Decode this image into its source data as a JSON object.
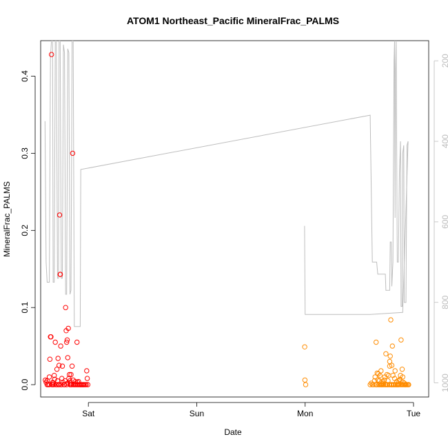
{
  "chart_data": {
    "type": "scatter",
    "title": "ATOM1 Northeast_Pacific MineralFrac_PALMS",
    "xlabel": "Date",
    "ylabel": "MineralFrac_PALMS",
    "x_unit": "days since Sat 00:00",
    "xlim": [
      -0.44,
      3.14
    ],
    "ylim": [
      -0.016,
      0.446
    ],
    "x_ticks": [
      {
        "value": 0,
        "label": "Sat"
      },
      {
        "value": 1,
        "label": "Sun"
      },
      {
        "value": 2,
        "label": "Mon"
      },
      {
        "value": 3,
        "label": "Tue"
      }
    ],
    "y_ticks": [
      0.0,
      0.1,
      0.2,
      0.3,
      0.4
    ],
    "y2_ticks": [
      200,
      400,
      600,
      800,
      1000
    ],
    "y2_lim": [
      1035,
      150
    ],
    "grid": false,
    "series": [
      {
        "name": "",
        "color": "#ff0000",
        "marker": "open-circle",
        "points": [
          [
            -0.397,
            0.006
          ],
          [
            -0.39,
            0.003
          ],
          [
            -0.38,
            0.0
          ],
          [
            -0.37,
            0.0
          ],
          [
            -0.36,
            0.0
          ],
          [
            -0.355,
            0.033
          ],
          [
            -0.35,
            0.062
          ],
          [
            -0.345,
            0.062
          ],
          [
            -0.34,
            0.428
          ],
          [
            -0.335,
            0.0
          ],
          [
            -0.33,
            0.003
          ],
          [
            -0.325,
            0.002
          ],
          [
            -0.32,
            0.0
          ],
          [
            -0.315,
            0.012
          ],
          [
            -0.31,
            0.007
          ],
          [
            -0.305,
            0.055
          ],
          [
            -0.3,
            0.0
          ],
          [
            -0.29,
            0.02
          ],
          [
            -0.285,
            0.005
          ],
          [
            -0.28,
            0.034
          ],
          [
            -0.275,
            0.0
          ],
          [
            -0.27,
            0.025
          ],
          [
            -0.265,
            0.22
          ],
          [
            -0.26,
            0.143
          ],
          [
            -0.258,
            0.143
          ],
          [
            -0.255,
            0.05
          ],
          [
            -0.25,
            0.0
          ],
          [
            -0.245,
            0.008
          ],
          [
            -0.24,
            0.024
          ],
          [
            -0.235,
            0.003
          ],
          [
            -0.225,
            0.0
          ],
          [
            -0.215,
            0.005
          ],
          [
            -0.21,
            0.1
          ],
          [
            -0.205,
            0.07
          ],
          [
            -0.2,
            0.055
          ],
          [
            -0.195,
            0.058
          ],
          [
            -0.19,
            0.035
          ],
          [
            -0.185,
            0.073
          ],
          [
            -0.18,
            0.008
          ],
          [
            -0.175,
            0.013
          ],
          [
            -0.17,
            0.0
          ],
          [
            -0.165,
            0.002
          ],
          [
            -0.16,
            0.013
          ],
          [
            -0.155,
            0.0
          ],
          [
            -0.15,
            0.024
          ],
          [
            -0.145,
            0.3
          ],
          [
            -0.14,
            0.006
          ],
          [
            -0.13,
            0.0
          ],
          [
            -0.12,
            0.0
          ],
          [
            -0.11,
            0.0
          ],
          [
            -0.105,
            0.055
          ],
          [
            -0.1,
            0.0
          ],
          [
            -0.09,
            0.0
          ],
          [
            -0.08,
            0.0
          ],
          [
            -0.07,
            0.0
          ],
          [
            -0.06,
            0.0
          ],
          [
            -0.05,
            0.0
          ],
          [
            -0.04,
            0.0
          ],
          [
            -0.03,
            0.0
          ],
          [
            -0.02,
            0.0
          ],
          [
            -0.015,
            0.018
          ],
          [
            -0.01,
            0.008
          ],
          [
            -0.005,
            0.0
          ],
          [
            -0.38,
            0.005
          ],
          [
            -0.36,
            0.01
          ],
          [
            -0.33,
            0.0
          ],
          [
            -0.29,
            0.0
          ],
          [
            -0.27,
            0.0
          ],
          [
            -0.25,
            0.0
          ],
          [
            -0.22,
            0.0
          ],
          [
            -0.2,
            0.0
          ],
          [
            -0.19,
            0.002
          ],
          [
            -0.17,
            0.005
          ],
          [
            -0.16,
            0.0
          ],
          [
            -0.14,
            0.0
          ],
          [
            -0.12,
            0.004
          ],
          [
            -0.1,
            0.003
          ],
          [
            -0.09,
            0.004
          ],
          [
            -0.07,
            0.0
          ],
          [
            -0.05,
            0.0
          ]
        ]
      },
      {
        "name": "",
        "color": "#ff8c00",
        "marker": "open-circle",
        "points": [
          [
            1.996,
            0.049
          ],
          [
            1.998,
            0.006
          ],
          [
            2.005,
            0.0
          ],
          [
            2.6,
            0.0
          ],
          [
            2.61,
            0.002
          ],
          [
            2.62,
            0.0
          ],
          [
            2.63,
            0.0
          ],
          [
            2.64,
            0.005
          ],
          [
            2.645,
            0.01
          ],
          [
            2.65,
            0.0
          ],
          [
            2.655,
            0.055
          ],
          [
            2.66,
            0.0
          ],
          [
            2.665,
            0.015
          ],
          [
            2.67,
            0.006
          ],
          [
            2.675,
            0.014
          ],
          [
            2.68,
            0.0
          ],
          [
            2.685,
            0.005
          ],
          [
            2.69,
            0.012
          ],
          [
            2.695,
            0.0
          ],
          [
            2.7,
            0.018
          ],
          [
            2.705,
            0.0
          ],
          [
            2.71,
            0.0
          ],
          [
            2.715,
            0.004
          ],
          [
            2.72,
            0.002
          ],
          [
            2.725,
            0.0
          ],
          [
            2.73,
            0.006
          ],
          [
            2.735,
            0.01
          ],
          [
            2.74,
            0.0
          ],
          [
            2.745,
            0.04
          ],
          [
            2.75,
            0.0
          ],
          [
            2.755,
            0.013
          ],
          [
            2.76,
            0.0
          ],
          [
            2.765,
            0.005
          ],
          [
            2.77,
            0.012
          ],
          [
            2.775,
            0.0
          ],
          [
            2.78,
            0.024
          ],
          [
            2.785,
            0.037
          ],
          [
            2.79,
            0.084
          ],
          [
            2.795,
            0.0
          ],
          [
            2.8,
            0.0
          ],
          [
            2.805,
            0.05
          ],
          [
            2.81,
            0.012
          ],
          [
            2.815,
            0.0
          ],
          [
            2.82,
            0.0
          ],
          [
            2.825,
            0.008
          ],
          [
            2.83,
            0.018
          ],
          [
            2.835,
            0.0
          ],
          [
            2.84,
            0.0
          ],
          [
            2.845,
            0.004
          ],
          [
            2.85,
            0.0
          ],
          [
            2.855,
            0.0
          ],
          [
            2.86,
            0.005
          ],
          [
            2.865,
            0.0
          ],
          [
            2.87,
            0.006
          ],
          [
            2.875,
            0.007
          ],
          [
            2.88,
            0.012
          ],
          [
            2.885,
            0.058
          ],
          [
            2.89,
            0.0
          ],
          [
            2.895,
            0.02
          ],
          [
            2.9,
            0.0
          ],
          [
            2.905,
            0.003
          ],
          [
            2.91,
            0.0
          ],
          [
            2.915,
            0.002
          ],
          [
            2.92,
            0.0
          ],
          [
            2.925,
            0.0
          ],
          [
            2.93,
            0.0
          ],
          [
            2.94,
            0.0
          ],
          [
            2.95,
            0.0
          ],
          [
            2.955,
            0.0
          ],
          [
            2.66,
            0.0
          ],
          [
            2.68,
            0.0
          ],
          [
            2.7,
            0.0
          ],
          [
            2.72,
            0.0
          ],
          [
            2.74,
            0.0
          ],
          [
            2.76,
            0.0
          ],
          [
            2.78,
            0.0
          ],
          [
            2.8,
            0.0
          ],
          [
            2.82,
            0.0
          ],
          [
            2.84,
            0.0
          ],
          [
            2.86,
            0.0
          ],
          [
            2.88,
            0.0
          ],
          [
            2.78,
            0.03
          ],
          [
            2.8,
            0.025
          ],
          [
            2.9,
            0.01
          ]
        ]
      }
    ],
    "secondary_line": {
      "name": "",
      "color": "#bdbdbd",
      "points": [
        [
          -0.4,
          350
        ],
        [
          -0.39,
          700
        ],
        [
          -0.38,
          750
        ],
        [
          -0.36,
          750
        ],
        [
          -0.35,
          190
        ],
        [
          -0.34,
          150
        ],
        [
          -0.33,
          150
        ],
        [
          -0.325,
          750
        ],
        [
          -0.315,
          750
        ],
        [
          -0.305,
          150
        ],
        [
          -0.295,
          150
        ],
        [
          -0.285,
          740
        ],
        [
          -0.275,
          740
        ],
        [
          -0.27,
          150
        ],
        [
          -0.26,
          150
        ],
        [
          -0.25,
          740
        ],
        [
          -0.24,
          740
        ],
        [
          -0.23,
          160
        ],
        [
          -0.22,
          180
        ],
        [
          -0.21,
          780
        ],
        [
          -0.2,
          780
        ],
        [
          -0.19,
          170
        ],
        [
          -0.18,
          180
        ],
        [
          -0.17,
          780
        ],
        [
          -0.16,
          770
        ],
        [
          -0.15,
          150
        ],
        [
          -0.14,
          150
        ],
        [
          -0.13,
          860
        ],
        [
          -0.1,
          860
        ],
        [
          -0.09,
          860
        ],
        [
          -0.075,
          860
        ],
        [
          -0.07,
          470
        ],
        [
          2.6,
          335
        ],
        [
          2.62,
          700
        ],
        [
          2.66,
          700
        ],
        [
          2.67,
          730
        ],
        [
          2.74,
          730
        ],
        [
          2.745,
          770
        ],
        [
          2.78,
          770
        ],
        [
          2.785,
          650
        ],
        [
          2.795,
          650
        ],
        [
          2.8,
          760
        ],
        [
          2.81,
          700
        ],
        [
          2.82,
          200
        ],
        [
          2.825,
          150
        ],
        [
          2.83,
          590
        ],
        [
          2.835,
          220
        ],
        [
          2.84,
          150
        ],
        [
          2.85,
          700
        ],
        [
          2.86,
          700
        ],
        [
          2.87,
          480
        ],
        [
          2.88,
          400
        ],
        [
          2.885,
          810
        ],
        [
          2.895,
          810
        ],
        [
          2.9,
          430
        ],
        [
          2.91,
          410
        ],
        [
          2.915,
          800
        ],
        [
          2.93,
          800
        ],
        [
          2.94,
          410
        ],
        [
          2.95,
          400
        ]
      ],
      "segment2": [
        [
          1.995,
          610
        ],
        [
          2.0,
          830
        ],
        [
          2.6,
          830
        ],
        [
          2.9,
          825
        ],
        [
          2.95,
          400
        ]
      ]
    }
  }
}
